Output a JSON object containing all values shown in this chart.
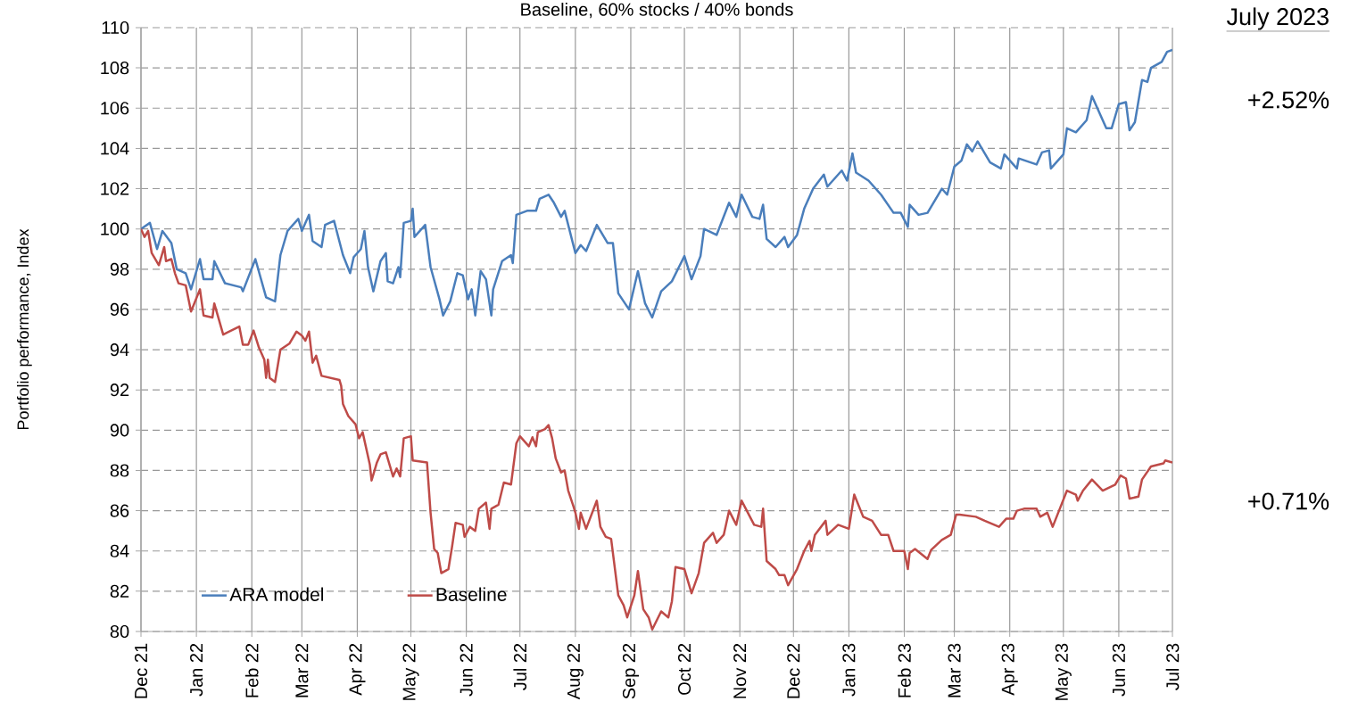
{
  "chart_data": {
    "type": "line",
    "title": "Baseline, 60% stocks / 40% bonds",
    "ylabel": "Portfolio performance, Index",
    "annotations": [
      "July 2023",
      "+2.52%",
      "+0.71%"
    ],
    "xlim": [
      "2021-12-01",
      "2023-07-01"
    ],
    "xticks": [
      {
        "value": "2021-12-01",
        "label": "Dec 21"
      },
      {
        "value": "2022-01-01",
        "label": "Jan 22"
      },
      {
        "value": "2022-02-01",
        "label": "Feb 22"
      },
      {
        "value": "2022-03-01",
        "label": "Mar 22"
      },
      {
        "value": "2022-04-01",
        "label": "Apr 22"
      },
      {
        "value": "2022-05-01",
        "label": "May 22"
      },
      {
        "value": "2022-06-01",
        "label": "Jun 22"
      },
      {
        "value": "2022-07-01",
        "label": "Jul 22"
      },
      {
        "value": "2022-08-01",
        "label": "Aug 22"
      },
      {
        "value": "2022-09-01",
        "label": "Sep 22"
      },
      {
        "value": "2022-10-01",
        "label": "Oct 22"
      },
      {
        "value": "2022-11-01",
        "label": "Nov 22"
      },
      {
        "value": "2022-12-01",
        "label": "Dec 22"
      },
      {
        "value": "2023-01-01",
        "label": "Jan 23"
      },
      {
        "value": "2023-02-01",
        "label": "Feb 23"
      },
      {
        "value": "2023-03-01",
        "label": "Mar 23"
      },
      {
        "value": "2023-04-01",
        "label": "Apr 23"
      },
      {
        "value": "2023-05-01",
        "label": "May 23"
      },
      {
        "value": "2023-06-01",
        "label": "Jun 23"
      },
      {
        "value": "2023-07-01",
        "label": "Jul 23"
      }
    ],
    "ylim": [
      80,
      110
    ],
    "yticks": [
      80,
      82,
      84,
      86,
      88,
      90,
      92,
      94,
      96,
      98,
      100,
      102,
      104,
      106,
      108,
      110
    ],
    "grid": true,
    "legend": "bottom left",
    "series": [
      {
        "name": "ARA model",
        "color": "#4a7ebb",
        "x": [
          "2021-12-01",
          "2021-12-06",
          "2021-12-10",
          "2021-12-13",
          "2021-12-18",
          "2021-12-21",
          "2021-12-26",
          "2021-12-29",
          "2022-01-03",
          "2022-01-05",
          "2022-01-10",
          "2022-01-11",
          "2022-01-17",
          "2022-01-26",
          "2022-01-27",
          "2022-02-03",
          "2022-02-09",
          "2022-02-14",
          "2022-02-17",
          "2022-02-21",
          "2022-02-27",
          "2022-03-01",
          "2022-03-05",
          "2022-03-07",
          "2022-03-12",
          "2022-03-14",
          "2022-03-19",
          "2022-03-24",
          "2022-03-28",
          "2022-03-30",
          "2022-04-03",
          "2022-04-05",
          "2022-04-07",
          "2022-04-10",
          "2022-04-14",
          "2022-04-17",
          "2022-04-18",
          "2022-04-21",
          "2022-04-24",
          "2022-04-25",
          "2022-04-27",
          "2022-05-01",
          "2022-05-02",
          "2022-05-03",
          "2022-05-09",
          "2022-05-12",
          "2022-05-17",
          "2022-05-19",
          "2022-05-23",
          "2022-05-27",
          "2022-05-30",
          "2022-06-02",
          "2022-06-04",
          "2022-06-06",
          "2022-06-09",
          "2022-06-12",
          "2022-06-15",
          "2022-06-16",
          "2022-06-21",
          "2022-06-26",
          "2022-06-27",
          "2022-06-29",
          "2022-07-05",
          "2022-07-10",
          "2022-07-12",
          "2022-07-17",
          "2022-07-20",
          "2022-07-24",
          "2022-07-26",
          "2022-08-01",
          "2022-08-04",
          "2022-08-07",
          "2022-08-13",
          "2022-08-19",
          "2022-08-22",
          "2022-08-25",
          "2022-08-31",
          "2022-09-05",
          "2022-09-09",
          "2022-09-13",
          "2022-09-18",
          "2022-09-24",
          "2022-10-01",
          "2022-10-05",
          "2022-10-10",
          "2022-10-12",
          "2022-10-19",
          "2022-10-26",
          "2022-10-30",
          "2022-11-02",
          "2022-11-08",
          "2022-11-12",
          "2022-11-14",
          "2022-11-16",
          "2022-11-21",
          "2022-11-26",
          "2022-11-28",
          "2022-12-03",
          "2022-12-07",
          "2022-12-12",
          "2022-12-18",
          "2022-12-20",
          "2022-12-28",
          "2022-12-31",
          "2023-01-03",
          "2023-01-05",
          "2023-01-12",
          "2023-01-19",
          "2023-01-26",
          "2023-01-30",
          "2023-02-03",
          "2023-02-04",
          "2023-02-09",
          "2023-02-14",
          "2023-02-22",
          "2023-02-25",
          "2023-03-01",
          "2023-03-05",
          "2023-03-08",
          "2023-03-11",
          "2023-03-14",
          "2023-03-21",
          "2023-03-27",
          "2023-03-29",
          "2023-04-05",
          "2023-04-06",
          "2023-04-16",
          "2023-04-19",
          "2023-04-23",
          "2023-04-24",
          "2023-05-01",
          "2023-05-03",
          "2023-05-08",
          "2023-05-14",
          "2023-05-17",
          "2023-05-25",
          "2023-05-28",
          "2023-06-01",
          "2023-06-05",
          "2023-06-07",
          "2023-06-10",
          "2023-06-14",
          "2023-06-17",
          "2023-06-19",
          "2023-06-25",
          "2023-06-28",
          "2023-07-01"
        ],
        "values": [
          100,
          100.3,
          99.0,
          99.9,
          99.3,
          98.0,
          97.8,
          97.0,
          98.5,
          97.5,
          97.5,
          98.4,
          97.3,
          97.1,
          96.9,
          98.5,
          96.6,
          96.4,
          98.7,
          99.9,
          100.5,
          99.9,
          100.7,
          99.4,
          99.1,
          100.2,
          100.4,
          98.7,
          97.8,
          98.6,
          99.0,
          99.9,
          98.1,
          96.9,
          98.4,
          98.8,
          97.4,
          97.3,
          98.1,
          97.6,
          100.3,
          100.4,
          101.0,
          99.6,
          100.2,
          98.1,
          96.5,
          95.7,
          96.4,
          97.8,
          97.7,
          96.5,
          97.0,
          95.7,
          97.9,
          97.5,
          95.7,
          97.0,
          98.4,
          98.7,
          98.3,
          100.7,
          100.9,
          100.9,
          101.5,
          101.7,
          101.3,
          100.6,
          100.9,
          98.8,
          99.2,
          98.9,
          100.2,
          99.3,
          99.3,
          96.8,
          96.0,
          97.9,
          96.3,
          95.6,
          96.9,
          97.4,
          98.65,
          97.5,
          98.65,
          100.0,
          99.7,
          101.3,
          100.6,
          101.7,
          100.6,
          100.5,
          101.2,
          99.5,
          99.1,
          99.6,
          99.1,
          99.7,
          101.0,
          102.0,
          102.7,
          102.1,
          102.9,
          102.4,
          103.75,
          102.8,
          102.4,
          101.7,
          100.8,
          100.8,
          100.1,
          101.2,
          100.7,
          100.8,
          102.0,
          101.7,
          103.1,
          103.4,
          104.2,
          103.85,
          104.35,
          103.3,
          103.0,
          103.7,
          103.0,
          103.5,
          103.2,
          103.8,
          103.9,
          103.0,
          103.7,
          105.0,
          104.8,
          105.4,
          106.6,
          105.0,
          105.0,
          106.2,
          106.3,
          104.9,
          105.3,
          107.4,
          107.3,
          108.0,
          108.3,
          108.8,
          108.9
        ]
      },
      {
        "name": "Baseline",
        "color": "#be4b48",
        "x": [
          "2021-12-01",
          "2021-12-03",
          "2021-12-05",
          "2021-12-07",
          "2021-12-11",
          "2021-12-14",
          "2021-12-15",
          "2021-12-18",
          "2021-12-20",
          "2021-12-22",
          "2021-12-26",
          "2021-12-29",
          "2022-01-03",
          "2022-01-05",
          "2022-01-10",
          "2022-01-11",
          "2022-01-16",
          "2022-01-25",
          "2022-01-27",
          "2022-01-30",
          "2022-02-02",
          "2022-02-05",
          "2022-02-08",
          "2022-02-09",
          "2022-02-10",
          "2022-02-11",
          "2022-02-14",
          "2022-02-17",
          "2022-02-22",
          "2022-02-26",
          "2022-03-01",
          "2022-03-03",
          "2022-03-05",
          "2022-03-07",
          "2022-03-09",
          "2022-03-12",
          "2022-03-22",
          "2022-03-23",
          "2022-03-24",
          "2022-03-27",
          "2022-03-31",
          "2022-04-02",
          "2022-04-04",
          "2022-04-05",
          "2022-04-08",
          "2022-04-09",
          "2022-04-12",
          "2022-04-14",
          "2022-04-17",
          "2022-04-21",
          "2022-04-23",
          "2022-04-25",
          "2022-04-27",
          "2022-05-01",
          "2022-05-02",
          "2022-05-10",
          "2022-05-12",
          "2022-05-14",
          "2022-05-16",
          "2022-05-18",
          "2022-05-22",
          "2022-05-24",
          "2022-05-26",
          "2022-05-30",
          "2022-05-31",
          "2022-06-03",
          "2022-06-06",
          "2022-06-08",
          "2022-06-12",
          "2022-06-14",
          "2022-06-15",
          "2022-06-19",
          "2022-06-22",
          "2022-06-26",
          "2022-06-29",
          "2022-07-01",
          "2022-07-06",
          "2022-07-08",
          "2022-07-10",
          "2022-07-11",
          "2022-07-15",
          "2022-07-17",
          "2022-07-19",
          "2022-07-21",
          "2022-07-24",
          "2022-07-26",
          "2022-07-28",
          "2022-07-31",
          "2022-08-01",
          "2022-08-03",
          "2022-08-04",
          "2022-08-07",
          "2022-08-13",
          "2022-08-15",
          "2022-08-18",
          "2022-08-21",
          "2022-08-25",
          "2022-08-28",
          "2022-08-30",
          "2022-09-03",
          "2022-09-05",
          "2022-09-08",
          "2022-09-11",
          "2022-09-13",
          "2022-09-18",
          "2022-09-22",
          "2022-09-24",
          "2022-09-26",
          "2022-10-01",
          "2022-10-05",
          "2022-10-09",
          "2022-10-12",
          "2022-10-17",
          "2022-10-19",
          "2022-10-23",
          "2022-10-26",
          "2022-10-30",
          "2022-11-02",
          "2022-11-09",
          "2022-11-13",
          "2022-11-14",
          "2022-11-16",
          "2022-11-21",
          "2022-11-23",
          "2022-11-26",
          "2022-11-28",
          "2022-12-03",
          "2022-12-07",
          "2022-12-10",
          "2022-12-11",
          "2022-12-13",
          "2022-12-19",
          "2022-12-20",
          "2022-12-26",
          "2023-01-01",
          "2023-01-04",
          "2023-01-09",
          "2023-01-14",
          "2023-01-19",
          "2023-01-23",
          "2023-01-26",
          "2023-02-01",
          "2023-02-03",
          "2023-02-04",
          "2023-02-07",
          "2023-02-14",
          "2023-02-16",
          "2023-02-22",
          "2023-02-27",
          "2023-03-02",
          "2023-03-04",
          "2023-03-13",
          "2023-03-18",
          "2023-03-26",
          "2023-03-30",
          "2023-04-03",
          "2023-04-05",
          "2023-04-09",
          "2023-04-16",
          "2023-04-18",
          "2023-04-22",
          "2023-04-25",
          "2023-04-29",
          "2023-05-03",
          "2023-05-08",
          "2023-05-09",
          "2023-05-12",
          "2023-05-17",
          "2023-05-23",
          "2023-05-30",
          "2023-06-02",
          "2023-06-05",
          "2023-06-07",
          "2023-06-12",
          "2023-06-14",
          "2023-06-19",
          "2023-06-26",
          "2023-06-27",
          "2023-07-01"
        ],
        "values": [
          100,
          99.6,
          99.9,
          98.8,
          98.2,
          99.1,
          98.4,
          98.5,
          97.8,
          97.3,
          97.2,
          95.9,
          97.0,
          95.7,
          95.6,
          96.3,
          94.75,
          95.15,
          94.25,
          94.25,
          94.95,
          94.1,
          93.5,
          92.6,
          93.5,
          92.6,
          92.4,
          94.0,
          94.3,
          94.9,
          94.7,
          94.45,
          94.9,
          93.35,
          93.7,
          92.7,
          92.5,
          92.2,
          91.3,
          90.7,
          90.3,
          89.6,
          89.9,
          89.5,
          88.3,
          87.5,
          88.4,
          88.8,
          88.9,
          87.7,
          88.1,
          87.7,
          89.6,
          89.7,
          88.5,
          88.4,
          85.9,
          84.1,
          83.9,
          82.9,
          83.1,
          84.2,
          85.4,
          85.3,
          84.7,
          85.2,
          85.0,
          86.1,
          86.4,
          85.1,
          86.1,
          86.3,
          87.4,
          87.3,
          89.35,
          89.7,
          89.2,
          89.65,
          89.2,
          89.9,
          90.05,
          90.25,
          89.6,
          88.6,
          87.9,
          88.0,
          87.0,
          86.2,
          85.9,
          85.1,
          85.9,
          85.1,
          86.5,
          85.2,
          84.7,
          84.6,
          81.8,
          81.3,
          80.7,
          81.8,
          83.0,
          81.1,
          80.7,
          80.1,
          81.0,
          80.7,
          81.5,
          83.2,
          83.1,
          81.9,
          82.9,
          84.4,
          84.9,
          84.4,
          84.8,
          86.0,
          85.3,
          86.5,
          85.3,
          85.2,
          86.1,
          83.5,
          83.1,
          82.8,
          82.8,
          82.3,
          83.1,
          84.0,
          84.5,
          84.0,
          84.8,
          85.5,
          84.8,
          85.3,
          85.1,
          86.8,
          85.7,
          85.5,
          84.8,
          84.8,
          84.0,
          84.0,
          83.1,
          83.9,
          84.1,
          83.6,
          84.05,
          84.55,
          84.8,
          85.8,
          85.8,
          85.7,
          85.5,
          85.2,
          85.6,
          85.6,
          86.0,
          86.1,
          86.1,
          85.7,
          85.9,
          85.2,
          86.1,
          87.0,
          86.8,
          86.5,
          87.0,
          87.55,
          87.0,
          87.3,
          87.75,
          87.6,
          86.6,
          86.7,
          87.55,
          88.2,
          88.35,
          88.5,
          88.4
        ]
      }
    ]
  }
}
